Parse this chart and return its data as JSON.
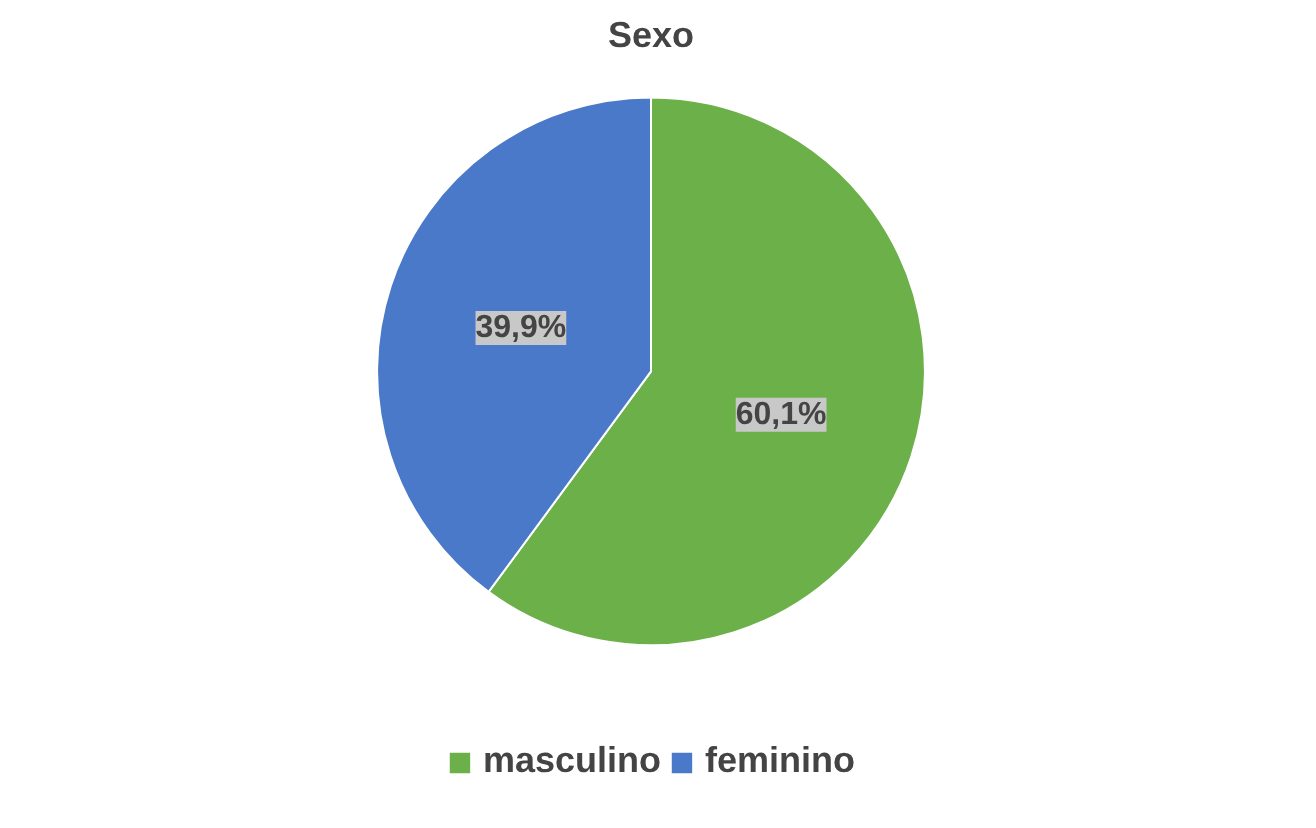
{
  "chart_data": {
    "type": "pie",
    "title": "Sexo",
    "categories": [
      "masculino",
      "feminino"
    ],
    "values": [
      60.1,
      39.9
    ],
    "colors": [
      "#6cb04a",
      "#4a79c9"
    ],
    "value_labels": [
      "60,1%",
      "39,9%"
    ],
    "legend": "bottom"
  }
}
